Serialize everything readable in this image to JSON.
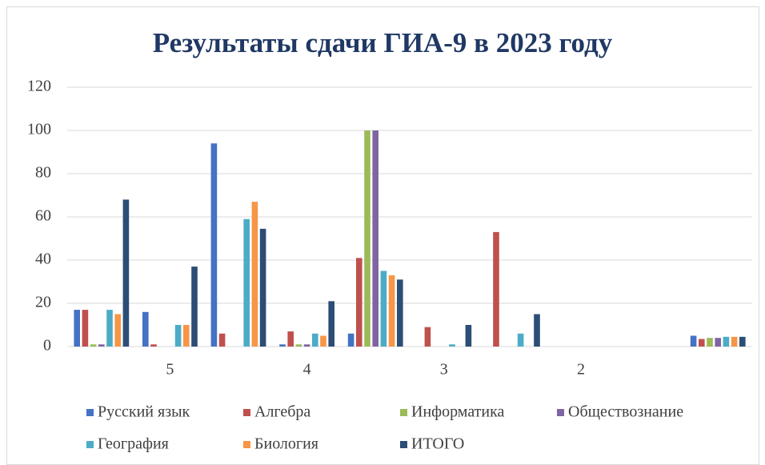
{
  "chart_data": {
    "type": "bar",
    "title": "Результаты сдачи ГИА-9 в 2023 году",
    "categories": [
      null,
      "5",
      null,
      "4",
      null,
      "3",
      null,
      "2",
      null,
      null
    ],
    "series": [
      {
        "name": "Русский язык",
        "color": "#4472c4",
        "values": [
          17,
          16,
          94,
          1,
          6,
          0,
          0,
          0,
          0,
          5
        ]
      },
      {
        "name": "Алгебра",
        "color": "#c0504d",
        "values": [
          17,
          1,
          6,
          7,
          41,
          9,
          53,
          0,
          0,
          3.5
        ]
      },
      {
        "name": "Информатика",
        "color": "#9bbb59",
        "values": [
          1,
          0,
          0,
          1,
          100,
          0,
          0,
          0,
          0,
          4
        ]
      },
      {
        "name": "Обществознание",
        "color": "#8064a2",
        "values": [
          1,
          0,
          0,
          1,
          100,
          0,
          0,
          0,
          0,
          4
        ]
      },
      {
        "name": "География",
        "color": "#4bacc6",
        "values": [
          17,
          10,
          59,
          6,
          35,
          1,
          6,
          0,
          0,
          4.5
        ]
      },
      {
        "name": "Биология",
        "color": "#f79646",
        "values": [
          15,
          10,
          67,
          5,
          33,
          0,
          0,
          0,
          0,
          4.5
        ]
      },
      {
        "name": "ИТОГО",
        "color": "#2c4d75",
        "values": [
          68,
          37,
          54.5,
          21,
          31,
          10,
          15,
          0,
          0,
          4.5
        ]
      }
    ],
    "ylim": [
      0,
      120
    ],
    "yticks": [
      0,
      20,
      40,
      60,
      80,
      100,
      120
    ],
    "grid": true,
    "legend": "bottom"
  }
}
